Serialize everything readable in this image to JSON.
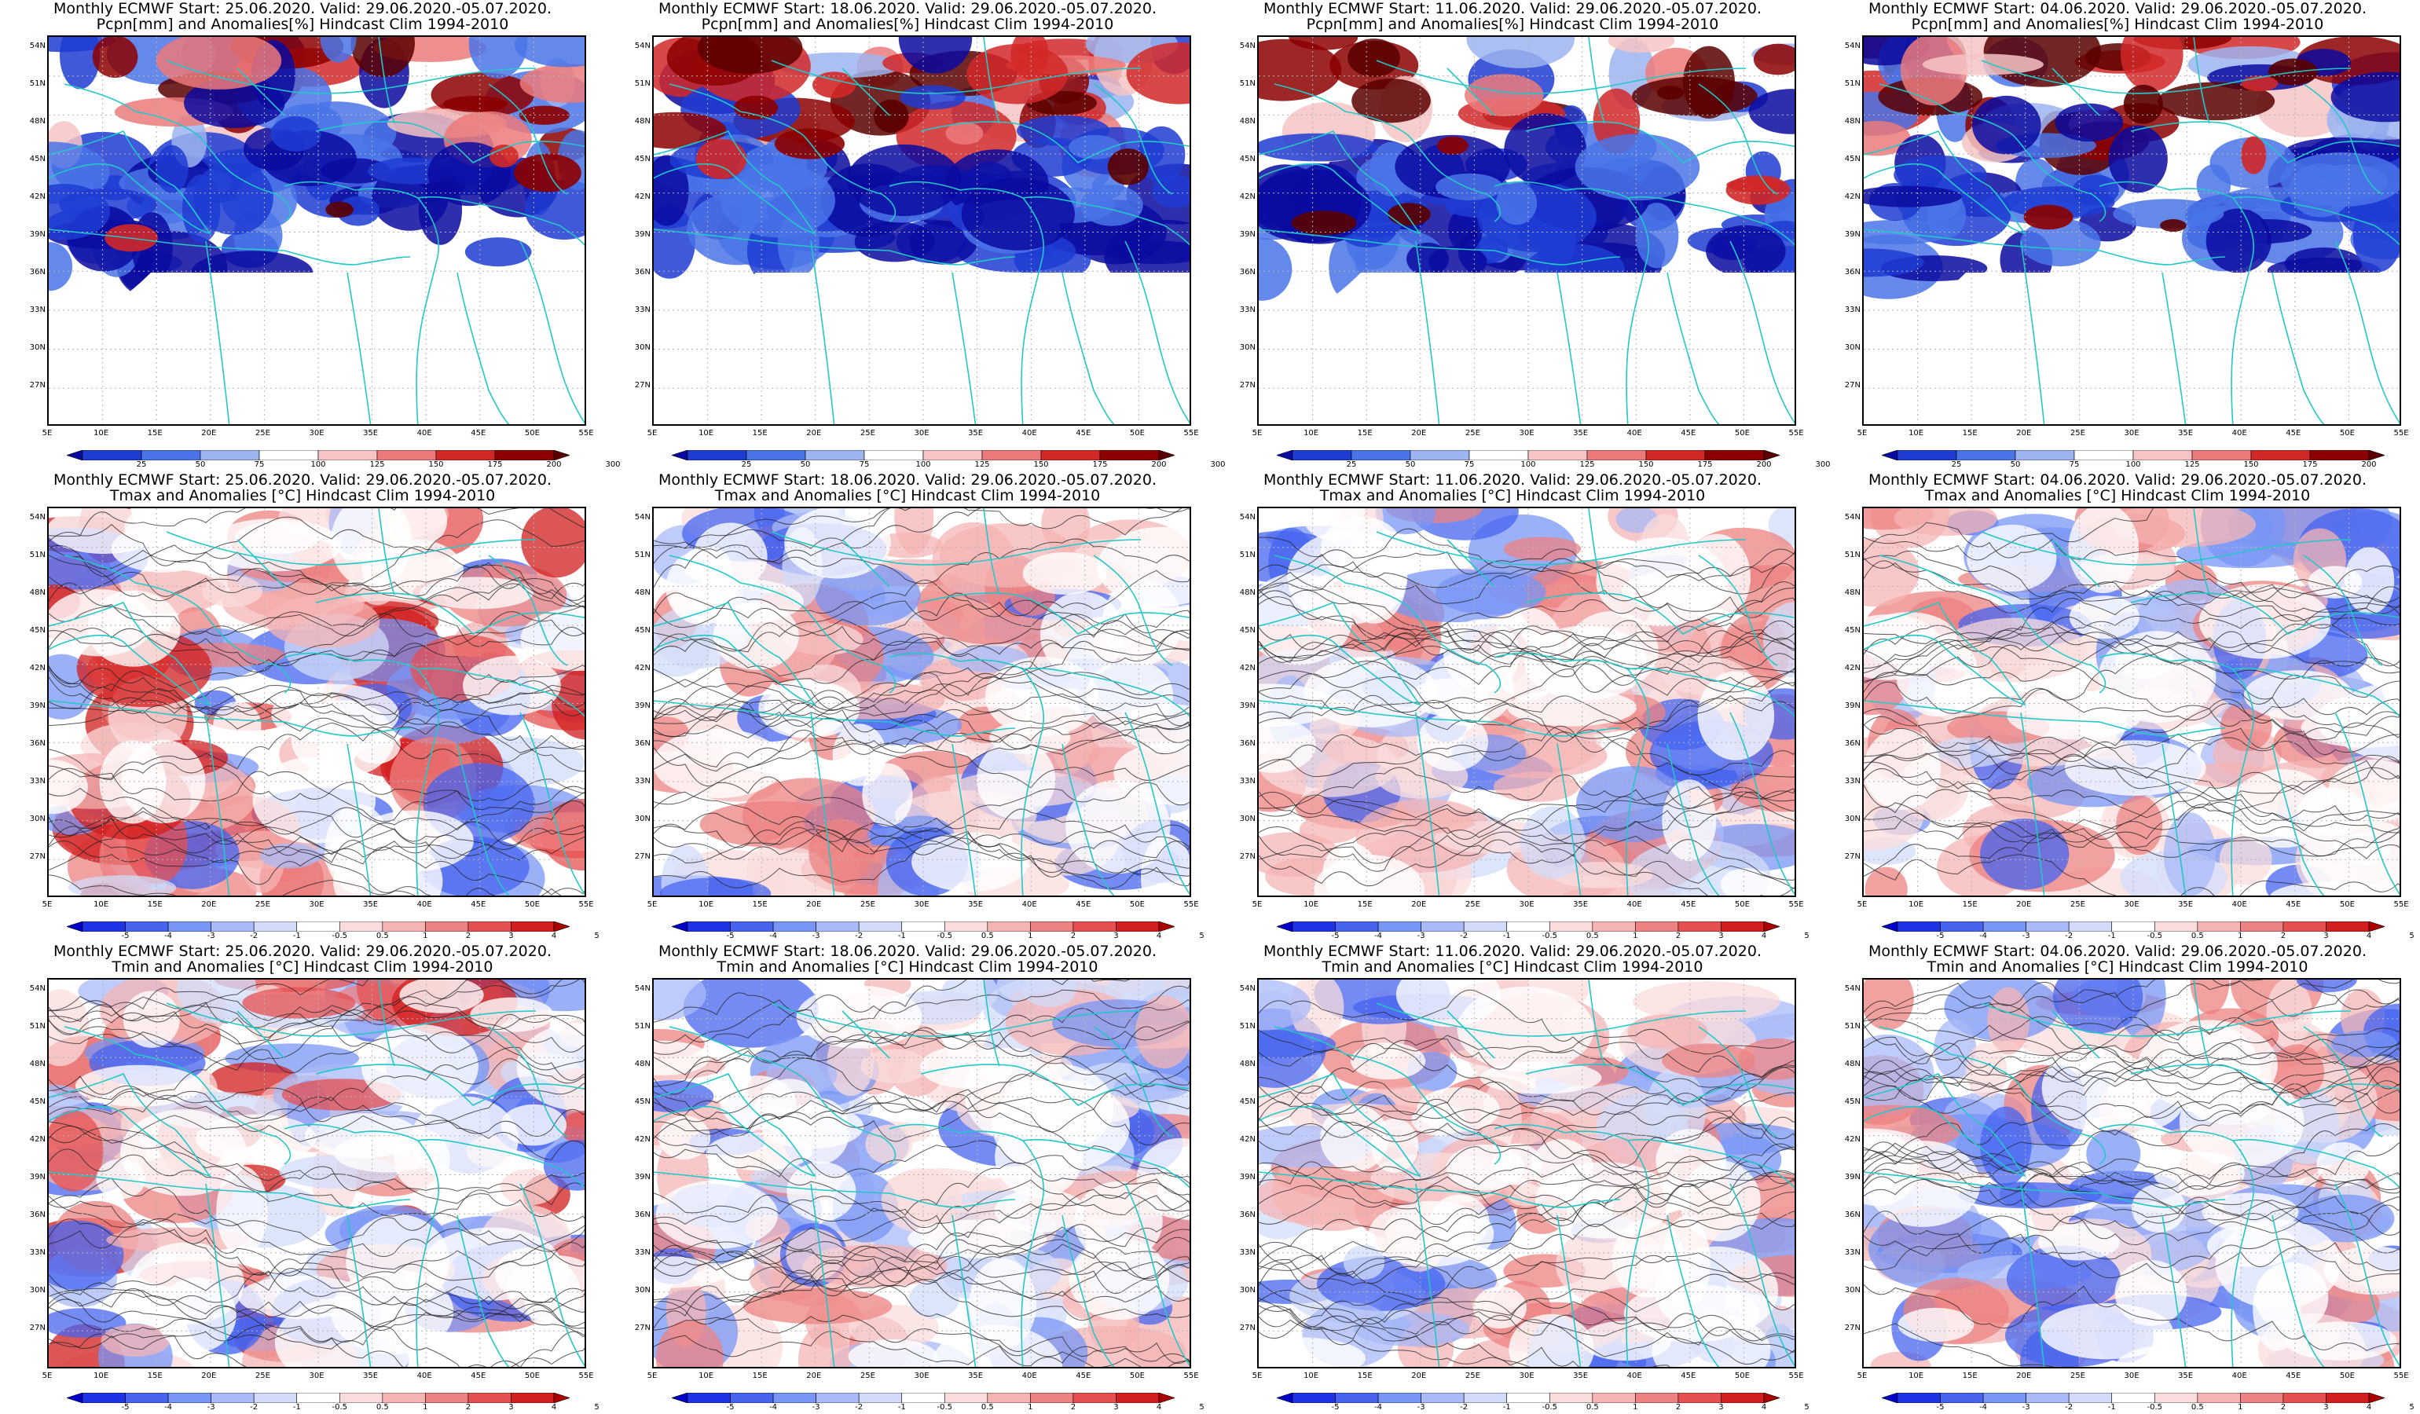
{
  "page": {
    "rows": [
      {
        "variable_line": "Pcpn[mm] and Anomalies[%] Hindcast Clim 1994-2010",
        "colorbar": {
          "labels": [
            "25",
            "50",
            "75",
            "100",
            "125",
            "150",
            "175",
            "200",
            "300"
          ],
          "colors": [
            "#0a0aa0",
            "#1e3cd2",
            "#4a74e8",
            "#9db4f0",
            "#ffffff",
            "#f6c4c4",
            "#ec7a7a",
            "#d22828",
            "#8c0000",
            "#5a0000"
          ]
        },
        "theme": "pcpn"
      },
      {
        "variable_line": "Tmax and Anomalies [°C] Hindcast Clim 1994-2010",
        "colorbar": {
          "labels": [
            "-5",
            "-4",
            "-3",
            "-2",
            "-1",
            "-0.5",
            "0.5",
            "1",
            "2",
            "3",
            "4",
            "5"
          ],
          "colors": [
            "#0000c8",
            "#1e32e6",
            "#4664f0",
            "#7896f5",
            "#aab9f8",
            "#d2dcfa",
            "#ffffff",
            "#fadcdc",
            "#f5b4b4",
            "#ee8282",
            "#e65050",
            "#d21e1e",
            "#aa0000"
          ]
        },
        "theme": "temp"
      },
      {
        "variable_line": "Tmin and Anomalies [°C] Hindcast Clim 1994-2010",
        "colorbar": {
          "labels": [
            "-5",
            "-4",
            "-3",
            "-2",
            "-1",
            "-0.5",
            "0.5",
            "1",
            "2",
            "3",
            "4",
            "5"
          ],
          "colors": [
            "#0000c8",
            "#1e32e6",
            "#4664f0",
            "#7896f5",
            "#aab9f8",
            "#d2dcfa",
            "#ffffff",
            "#fadcdc",
            "#f5b4b4",
            "#ee8282",
            "#e65050",
            "#d21e1e",
            "#aa0000"
          ]
        },
        "theme": "temp"
      }
    ],
    "columns": [
      {
        "header": "Monthly ECMWF Start: 25.06.2020. Valid: 29.06.2020.-05.07.2020."
      },
      {
        "header": "Monthly ECMWF Start: 18.06.2020. Valid: 29.06.2020.-05.07.2020."
      },
      {
        "header": "Monthly ECMWF Start: 11.06.2020. Valid: 29.06.2020.-05.07.2020."
      },
      {
        "header": "Monthly ECMWF Start: 04.06.2020. Valid: 29.06.2020.-05.07.2020."
      }
    ],
    "map_axes": {
      "lat_labels": [
        "54N",
        "51N",
        "48N",
        "45N",
        "42N",
        "39N",
        "36N",
        "33N",
        "30N",
        "27N"
      ],
      "lon_labels": [
        "5E",
        "10E",
        "15E",
        "20E",
        "25E",
        "30E",
        "35E",
        "40E",
        "45E",
        "50E",
        "55E"
      ]
    },
    "colors": {
      "coastline": "#22c8c8",
      "contour": "#222222",
      "grid": "#b4b4b4"
    }
  }
}
